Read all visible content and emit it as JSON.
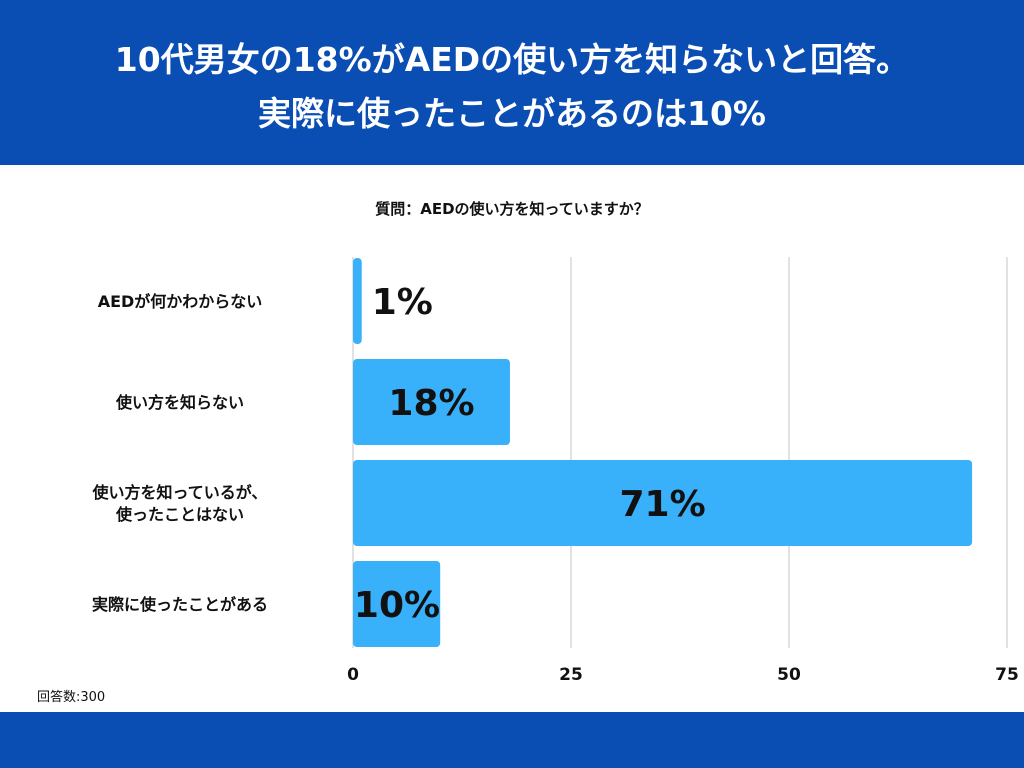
{
  "header": {
    "title_line_1": "10代男女の18%がAEDの使い方を知らないと回答。",
    "title_line_2": "実際に使ったことがあるのは10%"
  },
  "question": "質問：AEDの使い方を知っていますか？",
  "respondents": "回答数:300",
  "colors": {
    "band": "#0a4db3",
    "bar": "#38b0fa",
    "grid": "#d9d9d9"
  },
  "chart_data": {
    "type": "bar",
    "orientation": "horizontal",
    "categories": [
      [
        "AEDが何かわからない"
      ],
      [
        "使い方を知らない"
      ],
      [
        "使い方を知っているが、",
        "使ったことはない"
      ],
      [
        "実際に使ったことがある"
      ]
    ],
    "values": [
      1,
      18,
      71,
      10
    ],
    "value_labels": [
      "1%",
      "18%",
      "71%",
      "10%"
    ],
    "xlim": [
      0,
      75
    ],
    "xticks": [
      0,
      25,
      50,
      75
    ],
    "xtick_labels": [
      "0",
      "25",
      "50",
      "75"
    ],
    "grid": true
  }
}
